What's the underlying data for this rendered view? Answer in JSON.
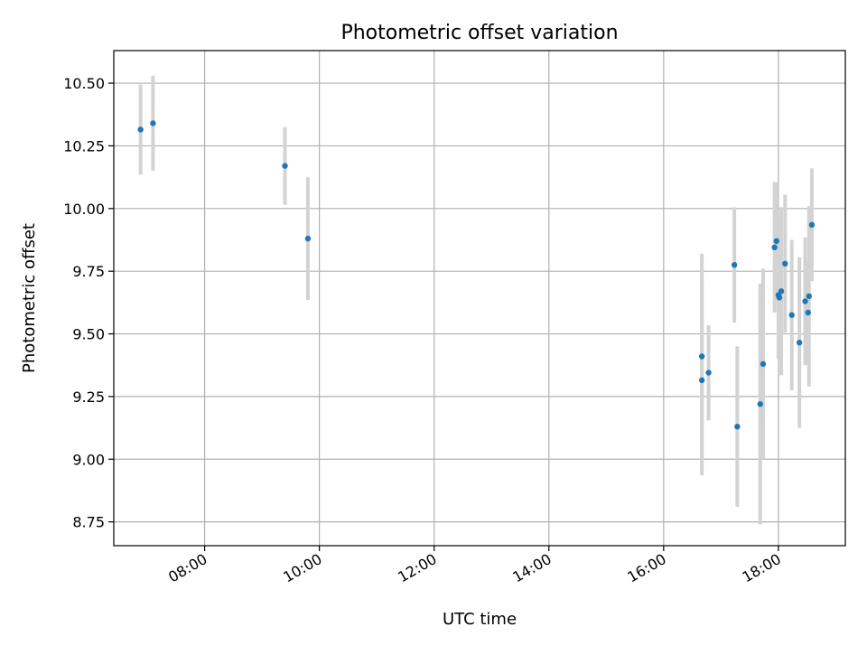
{
  "colors": {
    "marker": "#1f77b4",
    "errorbar": "#d3d3d3",
    "grid": "#b0b0b0",
    "axes": "#000000",
    "background": "#ffffff"
  },
  "chart_data": {
    "type": "scatter",
    "title": "Photometric offset variation",
    "xlabel": "UTC time",
    "ylabel": "Photometric offset",
    "x_format": "HH:MM",
    "xlim": [
      "06:25",
      "19:10"
    ],
    "ylim": [
      8.655,
      10.63
    ],
    "grid": true,
    "legend": "none",
    "x_ticks": [
      "08:00",
      "10:00",
      "12:00",
      "14:00",
      "16:00",
      "18:00"
    ],
    "y_ticks": [
      "8.75",
      "9.00",
      "9.25",
      "9.50",
      "9.75",
      "10.00",
      "10.25",
      "10.50"
    ],
    "series": [
      {
        "marker": "point",
        "errorbars": "vertical",
        "points": [
          {
            "x": "06:53",
            "y": 10.315,
            "yerr": 0.18
          },
          {
            "x": "07:06",
            "y": 10.34,
            "yerr": 0.19
          },
          {
            "x": "09:24",
            "y": 10.17,
            "yerr": 0.155
          },
          {
            "x": "09:48",
            "y": 9.88,
            "yerr": 0.245
          },
          {
            "x": "16:40",
            "y": 9.41,
            "yerr": 0.41
          },
          {
            "x": "16:40",
            "y": 9.315,
            "yerr": 0.38
          },
          {
            "x": "16:47",
            "y": 9.345,
            "yerr": 0.19
          },
          {
            "x": "17:14",
            "y": 9.775,
            "yerr": 0.23
          },
          {
            "x": "17:17",
            "y": 9.13,
            "yerr": 0.32
          },
          {
            "x": "17:41",
            "y": 9.22,
            "yerr": 0.48
          },
          {
            "x": "17:44",
            "y": 9.38,
            "yerr": 0.38
          },
          {
            "x": "17:56",
            "y": 9.845,
            "yerr": 0.26
          },
          {
            "x": "17:58",
            "y": 9.87,
            "yerr": 0.235
          },
          {
            "x": "18:00",
            "y": 9.655,
            "yerr": 0.255
          },
          {
            "x": "18:01",
            "y": 9.645,
            "yerr": 0.3
          },
          {
            "x": "18:03",
            "y": 9.67,
            "yerr": 0.335
          },
          {
            "x": "18:07",
            "y": 9.78,
            "yerr": 0.275
          },
          {
            "x": "18:14",
            "y": 9.575,
            "yerr": 0.3
          },
          {
            "x": "18:22",
            "y": 9.465,
            "yerr": 0.34
          },
          {
            "x": "18:28",
            "y": 9.63,
            "yerr": 0.255
          },
          {
            "x": "18:31",
            "y": 9.585,
            "yerr": 0.205
          },
          {
            "x": "18:32",
            "y": 9.65,
            "yerr": 0.36
          },
          {
            "x": "18:35",
            "y": 9.935,
            "yerr": 0.225
          }
        ]
      }
    ]
  }
}
